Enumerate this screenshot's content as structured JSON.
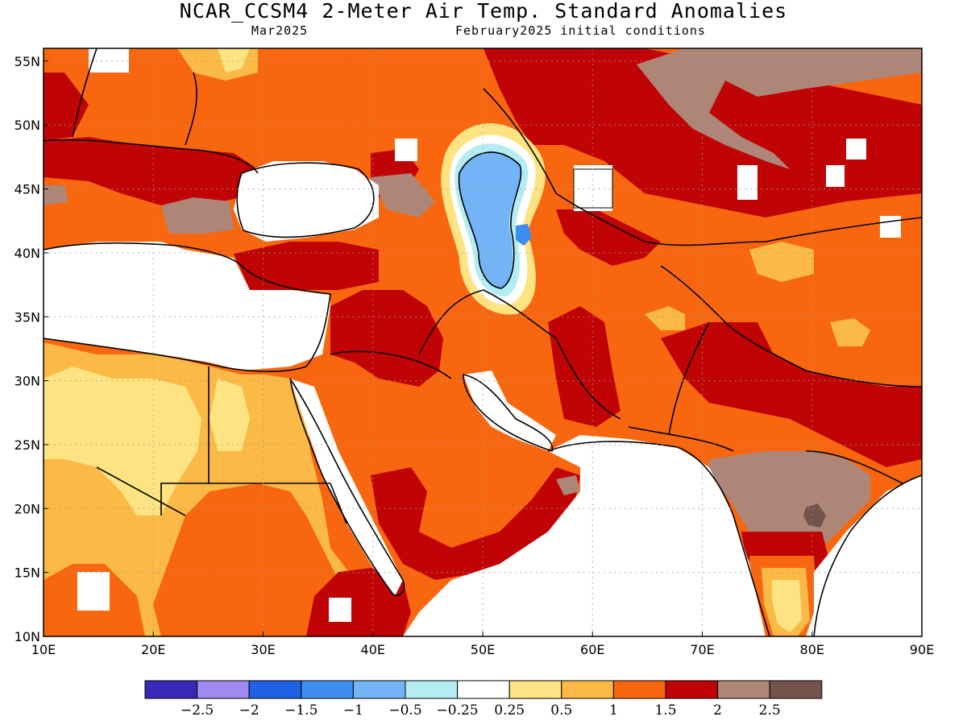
{
  "title": "NCAR_CCSM4 2-Meter Air Temp. Standard Anomalies",
  "subtitle_left": "Mar2025",
  "subtitle_right": "February2025 initial conditions",
  "map": {
    "lon_range": [
      10,
      90
    ],
    "lat_range": [
      10,
      56
    ],
    "x_ticks": [
      "10E",
      "20E",
      "30E",
      "40E",
      "50E",
      "60E",
      "70E",
      "80E",
      "90E"
    ],
    "y_ticks": [
      "10N",
      "15N",
      "20N",
      "25N",
      "30N",
      "35N",
      "40N",
      "45N",
      "50N",
      "55N"
    ],
    "grid": "dotted"
  },
  "colorbar": {
    "colors": [
      "#3a28b8",
      "#9f8af0",
      "#1f62e6",
      "#3e8ef2",
      "#74b3f6",
      "#b3ecf2",
      "#ffffff",
      "#fde382",
      "#fbb946",
      "#f8670f",
      "#c00406",
      "#ad8678",
      "#74534a"
    ],
    "labels": [
      "−2.5",
      "−2",
      "−1.5",
      "−1",
      "−0.5",
      "−0.25",
      "0.25",
      "0.5",
      "1",
      "1.5",
      "2",
      "2.5"
    ]
  },
  "palette": {
    "sea": "#ffffff",
    "light_yellow": "#fde382",
    "light_orange": "#fbb946",
    "orange": "#f8670f",
    "red": "#c00406",
    "brown": "#ad8678",
    "dark_brown": "#74534a",
    "light_blue": "#74b3f6",
    "blue": "#3e8ef2",
    "pale_cyan": "#b3ecf2"
  }
}
